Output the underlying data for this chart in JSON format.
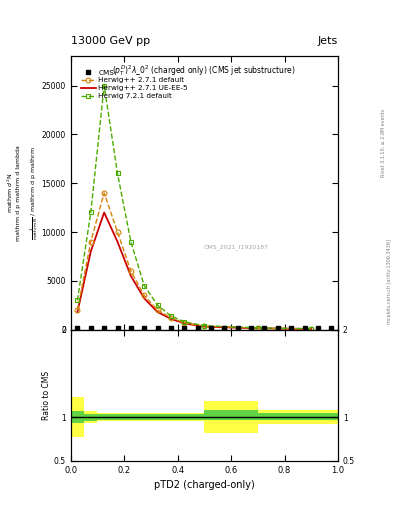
{
  "title_top": "13000 GeV pp",
  "title_right": "Jets",
  "watermark": "CMS_2021_I1920187",
  "right_label": "mcplots.cern.ch [arXiv:1306.3436]",
  "rivet_label": "Rivet 3.1.10, ≥ 2.8M events",
  "xlabel": "pTD2 (charged-only)",
  "ylabel_ratio": "Ratio to CMS",
  "xlim": [
    0,
    1
  ],
  "ylim_main": [
    0,
    28000
  ],
  "ylim_ratio": [
    0.5,
    2.0
  ],
  "cms_x": [
    0.025,
    0.075,
    0.125,
    0.175,
    0.225,
    0.275,
    0.325,
    0.375,
    0.425,
    0.475,
    0.525,
    0.575,
    0.625,
    0.675,
    0.725,
    0.775,
    0.825,
    0.875,
    0.925,
    0.975
  ],
  "cms_y": [
    200,
    200,
    200,
    200,
    200,
    200,
    200,
    200,
    200,
    200,
    200,
    200,
    200,
    200,
    200,
    200,
    200,
    200,
    200,
    200
  ],
  "herwig271_x": [
    0.025,
    0.075,
    0.125,
    0.175,
    0.225,
    0.275,
    0.325,
    0.375,
    0.425,
    0.5,
    0.7,
    0.9
  ],
  "herwig271_y": [
    2000,
    9000,
    14000,
    10000,
    6000,
    3500,
    2000,
    1200,
    700,
    350,
    150,
    80
  ],
  "herwig271ue_x": [
    0.025,
    0.075,
    0.125,
    0.175,
    0.225,
    0.275,
    0.325,
    0.375,
    0.425,
    0.5,
    0.7,
    0.9
  ],
  "herwig271ue_y": [
    1800,
    8000,
    12000,
    9000,
    5500,
    3200,
    1800,
    1100,
    650,
    300,
    130,
    70
  ],
  "herwig721_x": [
    0.025,
    0.075,
    0.125,
    0.175,
    0.225,
    0.275,
    0.325,
    0.375,
    0.425,
    0.5,
    0.7,
    0.9
  ],
  "herwig721_y": [
    3000,
    12000,
    25000,
    16000,
    9000,
    4500,
    2500,
    1400,
    800,
    400,
    180,
    90
  ],
  "color_herwig271": "#d4830a",
  "color_herwig271ue": "#cc0000",
  "color_herwig721": "#4aab00",
  "ratio_yellow_xedges": [
    0.0,
    0.05,
    0.1,
    0.15,
    0.2,
    0.25,
    0.3,
    0.35,
    0.4,
    0.45,
    0.5,
    0.55,
    0.6,
    0.65,
    0.7,
    0.75,
    0.8,
    0.85,
    0.9,
    0.95,
    1.0
  ],
  "ratio_yellow_low": [
    0.77,
    0.93,
    0.95,
    0.95,
    0.95,
    0.95,
    0.95,
    0.95,
    0.95,
    0.95,
    0.82,
    0.82,
    0.82,
    0.82,
    0.92,
    0.92,
    0.92,
    0.92,
    0.92,
    0.92
  ],
  "ratio_yellow_high": [
    1.23,
    1.07,
    1.05,
    1.05,
    1.05,
    1.05,
    1.05,
    1.05,
    1.05,
    1.05,
    1.18,
    1.18,
    1.18,
    1.18,
    1.08,
    1.08,
    1.08,
    1.08,
    1.08,
    1.08
  ],
  "ratio_green_xedges": [
    0.0,
    0.05,
    0.1,
    0.15,
    0.2,
    0.25,
    0.3,
    0.35,
    0.4,
    0.45,
    0.5,
    0.55,
    0.6,
    0.65,
    0.7,
    0.75,
    0.8,
    0.85,
    0.9,
    0.95,
    1.0
  ],
  "ratio_green_low": [
    0.93,
    0.96,
    0.97,
    0.97,
    0.97,
    0.97,
    0.97,
    0.97,
    0.97,
    0.97,
    0.97,
    0.97,
    0.97,
    0.97,
    0.97,
    0.97,
    0.97,
    0.97,
    0.97,
    0.97
  ],
  "ratio_green_high": [
    1.07,
    1.04,
    1.03,
    1.03,
    1.03,
    1.03,
    1.03,
    1.03,
    1.03,
    1.03,
    1.08,
    1.08,
    1.08,
    1.08,
    1.05,
    1.05,
    1.05,
    1.05,
    1.05,
    1.05
  ],
  "yticks_main": [
    0,
    5000,
    10000,
    15000,
    20000,
    25000
  ],
  "ytick_labels_main": [
    "0",
    "5000",
    "10000",
    "15000",
    "20000",
    "25000"
  ]
}
